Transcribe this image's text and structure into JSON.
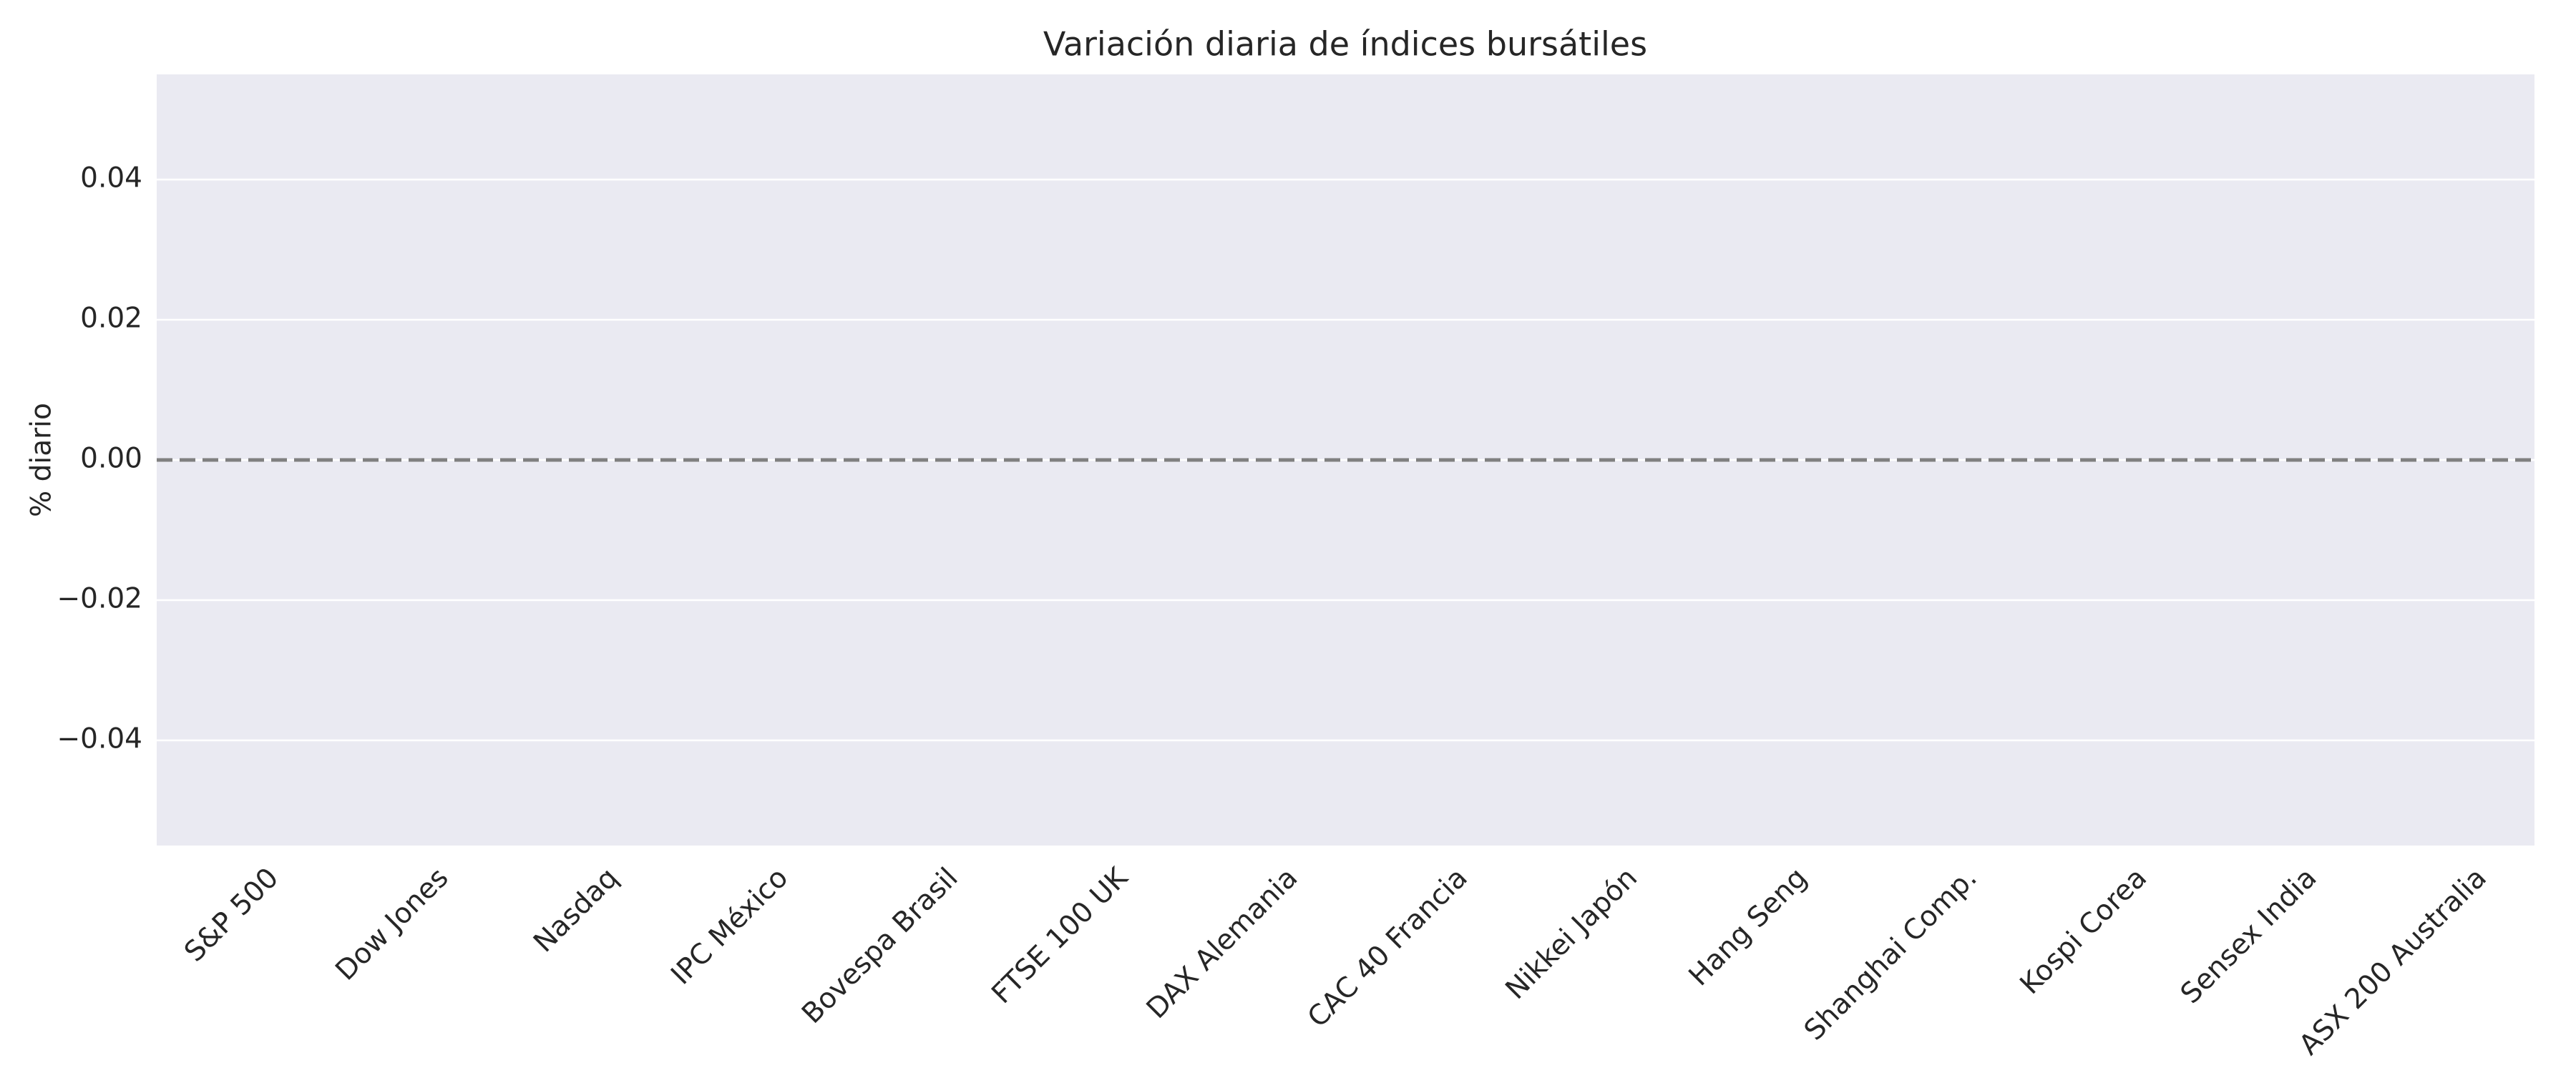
{
  "chart_data": {
    "type": "bar",
    "title": "Variación diaria de índices bursátiles",
    "ylabel": "% diario",
    "categories": [
      "S&P 500",
      "Dow Jones",
      "Nasdaq",
      "IPC México",
      "Bovespa Brasil",
      "FTSE 100 UK",
      "DAX Alemania",
      "CAC 40 Francia",
      "Nikkei Japón",
      "Hang Seng",
      "Shanghai Comp.",
      "Kospi Corea",
      "Sensex India",
      "ASX 200 Australia"
    ],
    "ylim": [
      -0.055,
      0.055
    ],
    "yticks": [
      {
        "value": -0.04,
        "label": "−0.04"
      },
      {
        "value": -0.02,
        "label": "−0.02"
      },
      {
        "value": 0,
        "label": "0.00"
      },
      0.02,
      0.04
    ],
    "grid": true,
    "background": "#eaeaf2",
    "hline": {
      "y": 0,
      "color": "#808080",
      "style": "dashed"
    }
  }
}
